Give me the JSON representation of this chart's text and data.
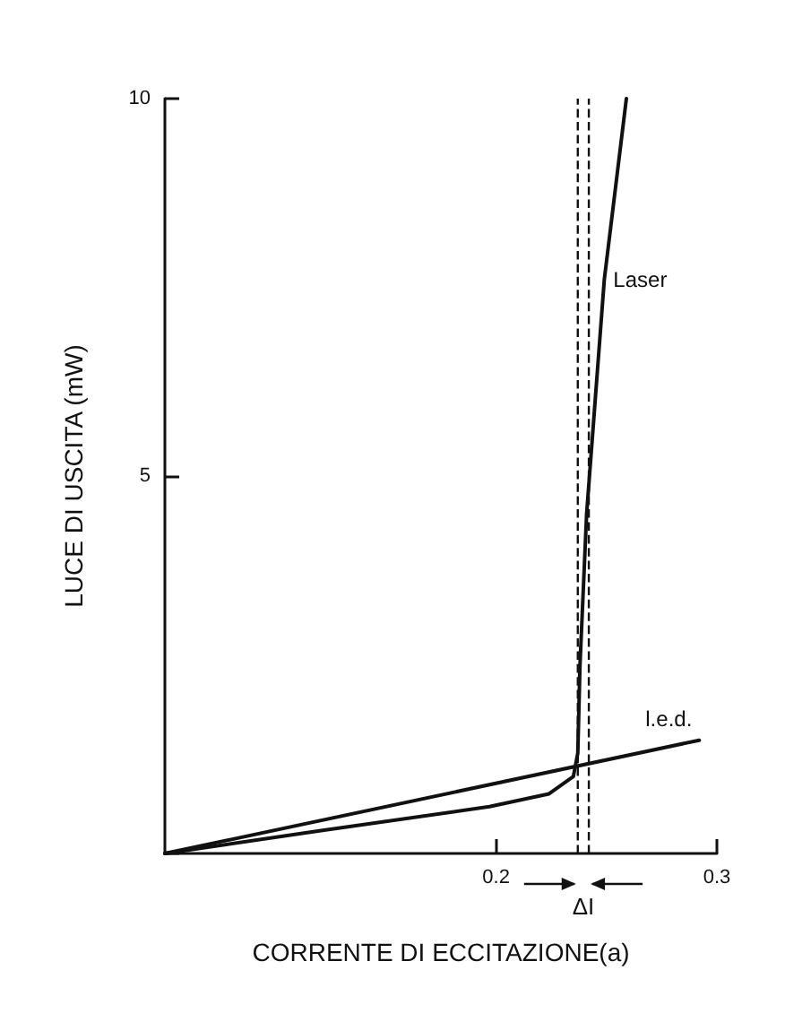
{
  "chart_data": {
    "type": "line",
    "xlabel": "CORRENTE DI ECCITAZIONE(a)",
    "ylabel": "LUCE DI USCITA (mW)",
    "xlim": [
      0.05,
      0.3
    ],
    "ylim": [
      0,
      10
    ],
    "xticks": [
      0.2,
      0.3
    ],
    "yticks": [
      {
        "value": 0,
        "label": null
      },
      5,
      10
    ],
    "series": [
      {
        "name": "Laser",
        "color": "#111111",
        "x": [
          0.05,
          0.12,
          0.197,
          0.224,
          0.235,
          0.237,
          0.238,
          0.241,
          0.249,
          0.259
        ],
        "values": [
          0,
          0.3,
          0.62,
          0.79,
          1.02,
          1.33,
          2.5,
          4.5,
          7.6,
          10
        ]
      },
      {
        "name": "l.e.d.",
        "color": "#111111",
        "x": [
          0.05,
          0.292
        ],
        "values": [
          0,
          1.5
        ]
      }
    ],
    "ref_lines": [
      {
        "axis": "x",
        "value": 0.237,
        "line_style": "dashed",
        "color": "#111111"
      },
      {
        "axis": "x",
        "value": 0.242,
        "line_style": "dashed",
        "color": "#111111"
      }
    ],
    "annotations": [
      "ΔI"
    ],
    "legend": false,
    "grid": false,
    "marker": "none",
    "line_style": "solid"
  }
}
